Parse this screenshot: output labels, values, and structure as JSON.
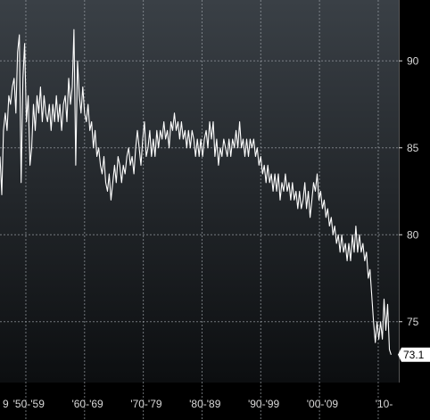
{
  "chart_data": {
    "type": "line",
    "title": "",
    "xlabel": "",
    "ylabel": "",
    "y_axis_position": "right",
    "grid": true,
    "legend": "none",
    "xlim": [
      1945.6,
      2013.5
    ],
    "ylim": [
      71.5,
      93.5
    ],
    "y_ticks": [
      {
        "label": "75",
        "value": 75
      },
      {
        "label": "80",
        "value": 80
      },
      {
        "label": "85",
        "value": 85
      },
      {
        "label": "90",
        "value": 90
      }
    ],
    "x_ticks": [
      {
        "label": "9",
        "value": 1945.6
      },
      {
        "label": "'50-'59",
        "value": 1950.5
      },
      {
        "label": "'60-'69",
        "value": 1960.5
      },
      {
        "label": "'70-'79",
        "value": 1970.5
      },
      {
        "label": "'80-'89",
        "value": 1980.5
      },
      {
        "label": "'90-'99",
        "value": 1990.5
      },
      {
        "label": "'00-'09",
        "value": 2000.5
      },
      {
        "label": "'10-",
        "value": 2011.0
      }
    ],
    "x_dividers": [
      1950,
      1960,
      1970,
      1980,
      1990,
      2000,
      2010
    ],
    "last_value_label": "73.1",
    "series": [
      {
        "values": [
          [
            1945.6,
            84.5
          ],
          [
            1945.9,
            82.3
          ],
          [
            1946.2,
            86.0
          ],
          [
            1946.5,
            87.0
          ],
          [
            1946.8,
            86.0
          ],
          [
            1947.1,
            88.0
          ],
          [
            1947.4,
            87.5
          ],
          [
            1947.7,
            88.5
          ],
          [
            1948.0,
            89.0
          ],
          [
            1948.3,
            87.0
          ],
          [
            1948.6,
            90.5
          ],
          [
            1948.9,
            91.5
          ],
          [
            1949.2,
            83.0
          ],
          [
            1949.5,
            89.0
          ],
          [
            1949.8,
            91.0
          ],
          [
            1950.1,
            86.5
          ],
          [
            1950.4,
            88.0
          ],
          [
            1950.7,
            84.0
          ],
          [
            1951.0,
            85.0
          ],
          [
            1951.3,
            87.5
          ],
          [
            1951.6,
            86.0
          ],
          [
            1951.9,
            88.0
          ],
          [
            1952.2,
            87.0
          ],
          [
            1952.5,
            88.5
          ],
          [
            1952.8,
            86.5
          ],
          [
            1953.1,
            88.0
          ],
          [
            1953.4,
            87.0
          ],
          [
            1953.7,
            86.5
          ],
          [
            1954.0,
            87.5
          ],
          [
            1954.3,
            86.0
          ],
          [
            1954.6,
            87.5
          ],
          [
            1954.9,
            86.5
          ],
          [
            1955.2,
            88.0
          ],
          [
            1955.5,
            86.5
          ],
          [
            1955.8,
            87.5
          ],
          [
            1956.1,
            86.0
          ],
          [
            1956.4,
            87.5
          ],
          [
            1956.7,
            88.0
          ],
          [
            1957.0,
            86.5
          ],
          [
            1957.3,
            89.0
          ],
          [
            1957.6,
            87.5
          ],
          [
            1957.9,
            88.5
          ],
          [
            1958.2,
            91.8
          ],
          [
            1958.5,
            84.0
          ],
          [
            1958.8,
            90.0
          ],
          [
            1959.1,
            88.0
          ],
          [
            1959.4,
            87.0
          ],
          [
            1959.7,
            88.5
          ],
          [
            1960.0,
            87.0
          ],
          [
            1960.3,
            86.5
          ],
          [
            1960.6,
            87.5
          ],
          [
            1960.9,
            86.0
          ],
          [
            1961.2,
            86.5
          ],
          [
            1961.5,
            85.0
          ],
          [
            1961.8,
            86.0
          ],
          [
            1962.1,
            84.5
          ],
          [
            1962.4,
            85.0
          ],
          [
            1962.7,
            84.0
          ],
          [
            1963.0,
            83.5
          ],
          [
            1963.3,
            84.5
          ],
          [
            1963.6,
            83.0
          ],
          [
            1963.9,
            82.5
          ],
          [
            1964.2,
            83.5
          ],
          [
            1964.5,
            82.0
          ],
          [
            1964.8,
            83.0
          ],
          [
            1965.1,
            84.0
          ],
          [
            1965.4,
            83.0
          ],
          [
            1965.7,
            84.5
          ],
          [
            1966.0,
            84.0
          ],
          [
            1966.3,
            83.0
          ],
          [
            1966.6,
            84.0
          ],
          [
            1966.9,
            83.5
          ],
          [
            1967.2,
            84.5
          ],
          [
            1967.5,
            85.0
          ],
          [
            1967.8,
            84.0
          ],
          [
            1968.1,
            84.5
          ],
          [
            1968.4,
            83.5
          ],
          [
            1968.7,
            85.0
          ],
          [
            1969.0,
            86.0
          ],
          [
            1969.3,
            85.0
          ],
          [
            1969.6,
            84.0
          ],
          [
            1969.9,
            85.5
          ],
          [
            1970.2,
            86.5
          ],
          [
            1970.5,
            84.5
          ],
          [
            1970.8,
            85.0
          ],
          [
            1971.1,
            86.0
          ],
          [
            1971.4,
            84.5
          ],
          [
            1971.7,
            85.5
          ],
          [
            1972.0,
            84.5
          ],
          [
            1972.3,
            86.0
          ],
          [
            1972.6,
            85.0
          ],
          [
            1972.9,
            86.0
          ],
          [
            1973.2,
            85.5
          ],
          [
            1973.5,
            86.5
          ],
          [
            1973.8,
            85.5
          ],
          [
            1974.1,
            86.0
          ],
          [
            1974.4,
            85.0
          ],
          [
            1974.7,
            86.5
          ],
          [
            1975.0,
            86.0
          ],
          [
            1975.3,
            87.0
          ],
          [
            1975.6,
            86.0
          ],
          [
            1975.9,
            86.5
          ],
          [
            1976.2,
            85.5
          ],
          [
            1976.5,
            86.5
          ],
          [
            1976.8,
            85.5
          ],
          [
            1977.1,
            86.0
          ],
          [
            1977.4,
            85.0
          ],
          [
            1977.7,
            86.0
          ],
          [
            1978.0,
            85.0
          ],
          [
            1978.3,
            86.0
          ],
          [
            1978.6,
            85.5
          ],
          [
            1978.9,
            84.5
          ],
          [
            1979.2,
            85.5
          ],
          [
            1979.5,
            84.5
          ],
          [
            1979.8,
            85.5
          ],
          [
            1980.1,
            84.5
          ],
          [
            1980.4,
            85.5
          ],
          [
            1980.7,
            86.0
          ],
          [
            1981.0,
            85.0
          ],
          [
            1981.3,
            86.5
          ],
          [
            1981.6,
            85.5
          ],
          [
            1981.9,
            86.5
          ],
          [
            1982.2,
            84.5
          ],
          [
            1982.5,
            85.5
          ],
          [
            1982.8,
            84.0
          ],
          [
            1983.1,
            85.0
          ],
          [
            1983.4,
            84.5
          ],
          [
            1983.7,
            85.5
          ],
          [
            1984.0,
            85.0
          ],
          [
            1984.3,
            84.5
          ],
          [
            1984.6,
            85.5
          ],
          [
            1984.9,
            84.5
          ],
          [
            1985.2,
            85.5
          ],
          [
            1985.5,
            85.0
          ],
          [
            1985.8,
            86.0
          ],
          [
            1986.1,
            85.0
          ],
          [
            1986.4,
            86.5
          ],
          [
            1986.7,
            85.0
          ],
          [
            1987.0,
            85.5
          ],
          [
            1987.3,
            84.5
          ],
          [
            1987.6,
            85.5
          ],
          [
            1987.9,
            84.5
          ],
          [
            1988.2,
            85.5
          ],
          [
            1988.5,
            85.0
          ],
          [
            1988.8,
            85.5
          ],
          [
            1989.1,
            84.5
          ],
          [
            1989.4,
            85.0
          ],
          [
            1989.7,
            84.0
          ],
          [
            1990.0,
            84.5
          ],
          [
            1990.3,
            83.5
          ],
          [
            1990.6,
            84.0
          ],
          [
            1990.9,
            83.0
          ],
          [
            1991.2,
            84.0
          ],
          [
            1991.5,
            83.0
          ],
          [
            1991.8,
            83.5
          ],
          [
            1992.1,
            82.5
          ],
          [
            1992.4,
            83.5
          ],
          [
            1992.7,
            82.5
          ],
          [
            1993.0,
            83.5
          ],
          [
            1993.3,
            82.0
          ],
          [
            1993.6,
            83.0
          ],
          [
            1993.9,
            82.5
          ],
          [
            1994.2,
            83.5
          ],
          [
            1994.5,
            82.5
          ],
          [
            1994.8,
            83.0
          ],
          [
            1995.1,
            82.0
          ],
          [
            1995.4,
            83.0
          ],
          [
            1995.7,
            82.0
          ],
          [
            1996.0,
            82.5
          ],
          [
            1996.3,
            81.5
          ],
          [
            1996.6,
            82.5
          ],
          [
            1996.9,
            81.5
          ],
          [
            1997.2,
            82.0
          ],
          [
            1997.5,
            83.0
          ],
          [
            1997.8,
            81.5
          ],
          [
            1998.1,
            82.5
          ],
          [
            1998.4,
            81.0
          ],
          [
            1998.7,
            82.0
          ],
          [
            1999.0,
            83.0
          ],
          [
            1999.3,
            82.5
          ],
          [
            1999.6,
            83.5
          ],
          [
            1999.9,
            82.0
          ],
          [
            2000.2,
            82.5
          ],
          [
            2000.5,
            81.5
          ],
          [
            2000.8,
            82.0
          ],
          [
            2001.1,
            81.0
          ],
          [
            2001.4,
            81.5
          ],
          [
            2001.7,
            80.5
          ],
          [
            2002.0,
            81.0
          ],
          [
            2002.3,
            80.0
          ],
          [
            2002.6,
            80.5
          ],
          [
            2002.9,
            79.5
          ],
          [
            2003.2,
            80.0
          ],
          [
            2003.5,
            79.0
          ],
          [
            2003.8,
            80.0
          ],
          [
            2004.1,
            79.0
          ],
          [
            2004.4,
            79.5
          ],
          [
            2004.7,
            78.5
          ],
          [
            2005.0,
            79.5
          ],
          [
            2005.3,
            78.5
          ],
          [
            2005.6,
            80.0
          ],
          [
            2005.9,
            79.0
          ],
          [
            2006.2,
            80.5
          ],
          [
            2006.5,
            79.0
          ],
          [
            2006.8,
            80.0
          ],
          [
            2007.1,
            79.0
          ],
          [
            2007.4,
            79.5
          ],
          [
            2007.7,
            78.5
          ],
          [
            2008.0,
            79.0
          ],
          [
            2008.3,
            77.5
          ],
          [
            2008.6,
            78.0
          ],
          [
            2008.9,
            76.5
          ],
          [
            2009.2,
            75.0
          ],
          [
            2009.5,
            73.8
          ],
          [
            2009.8,
            75.0
          ],
          [
            2010.1,
            74.0
          ],
          [
            2010.4,
            75.0
          ],
          [
            2010.7,
            74.0
          ],
          [
            2011.0,
            76.3
          ],
          [
            2011.3,
            74.5
          ],
          [
            2011.6,
            76.0
          ],
          [
            2011.9,
            73.4
          ],
          [
            2012.2,
            73.1
          ]
        ]
      }
    ]
  },
  "colors": {
    "background": "#000000",
    "plot_top": "#3a4046",
    "plot_bottom": "#0c0e10",
    "line": "#ffffff",
    "grid": "#9aa0a6",
    "tick_text": "#d8d8d8",
    "value_box_bg": "#ffffff",
    "value_box_text": "#000000"
  }
}
